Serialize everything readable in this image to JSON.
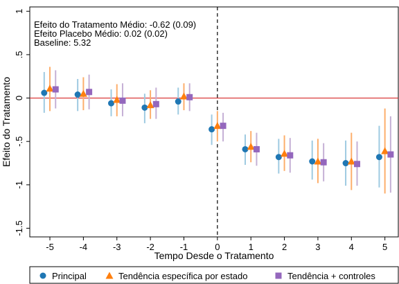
{
  "chart_data": {
    "type": "scatter",
    "xlabel": "Tempo Desde o Tratamento",
    "ylabel": "Efeito do Tratamento",
    "xlim": [
      -5.6,
      5.4
    ],
    "ylim": [
      -1.6,
      1.05
    ],
    "x_ticks": [
      -5,
      -4,
      -3,
      -2,
      -1,
      0,
      1,
      2,
      3,
      4,
      5
    ],
    "x_tick_labels": [
      "-5",
      "-4",
      "-3",
      "-2",
      "-1",
      "0",
      "1",
      "2",
      "3",
      "4",
      "5"
    ],
    "y_ticks": [
      -1.5,
      -1,
      -0.5,
      0,
      0.5,
      1
    ],
    "y_tick_labels": [
      "-1.5",
      "-1",
      "-.5",
      "0",
      ".5",
      "1"
    ],
    "reference_lines": {
      "x": 0,
      "y": 0,
      "y_color": "#d62728",
      "x_style": "dashed"
    },
    "annotations": [
      "Efeito do Tratamento Médio: -0.62 (0.09)",
      "Efeito Placebo Médio: 0.02 (0.02)",
      "Baseline:  5.32"
    ],
    "legend_position": "bottom",
    "series": [
      {
        "name": "Principal",
        "marker": "circle",
        "color": "#1f77b4",
        "errorbar_color": "#9ecae1",
        "x": [
          -5,
          -4,
          -3,
          -2,
          -1,
          0,
          1,
          2,
          3,
          4,
          5
        ],
        "y": [
          0.06,
          0.04,
          -0.06,
          -0.11,
          -0.04,
          -0.36,
          -0.59,
          -0.68,
          -0.73,
          -0.75,
          -0.68
        ],
        "lo": [
          -0.17,
          -0.15,
          -0.21,
          -0.29,
          -0.19,
          -0.54,
          -0.77,
          -0.87,
          -0.94,
          -1.01,
          -1.03
        ],
        "hi": [
          0.3,
          0.22,
          0.1,
          0.05,
          0.12,
          -0.19,
          -0.42,
          -0.47,
          -0.49,
          -0.49,
          -0.32
        ]
      },
      {
        "name": "Tendência específica por estado",
        "marker": "triangle",
        "color": "#ff7f0e",
        "errorbar_color": "#fdae6b",
        "x": [
          -5,
          -4,
          -3,
          -2,
          -1,
          0,
          1,
          2,
          3,
          4,
          5
        ],
        "y": [
          0.11,
          0.05,
          -0.02,
          -0.08,
          0.02,
          -0.32,
          -0.56,
          -0.64,
          -0.73,
          -0.73,
          -0.61
        ],
        "lo": [
          -0.15,
          -0.14,
          -0.21,
          -0.24,
          -0.14,
          -0.5,
          -0.74,
          -0.84,
          -0.98,
          -1.06,
          -1.1
        ],
        "hi": [
          0.36,
          0.24,
          0.16,
          0.09,
          0.17,
          -0.15,
          -0.38,
          -0.43,
          -0.47,
          -0.4,
          -0.12
        ]
      },
      {
        "name": "Tendência + controles",
        "marker": "square",
        "color": "#9467bd",
        "errorbar_color": "#c5b0d5",
        "x": [
          -5,
          -4,
          -3,
          -2,
          -1,
          0,
          1,
          2,
          3,
          4,
          5
        ],
        "y": [
          0.1,
          0.07,
          -0.03,
          -0.07,
          0.01,
          -0.32,
          -0.59,
          -0.66,
          -0.74,
          -0.76,
          -0.65
        ],
        "lo": [
          -0.12,
          -0.13,
          -0.21,
          -0.24,
          -0.15,
          -0.5,
          -0.78,
          -0.86,
          -0.96,
          -1.01,
          -1.09
        ],
        "hi": [
          0.32,
          0.27,
          0.17,
          0.12,
          0.17,
          -0.17,
          -0.4,
          -0.46,
          -0.52,
          -0.5,
          -0.21
        ]
      }
    ]
  }
}
